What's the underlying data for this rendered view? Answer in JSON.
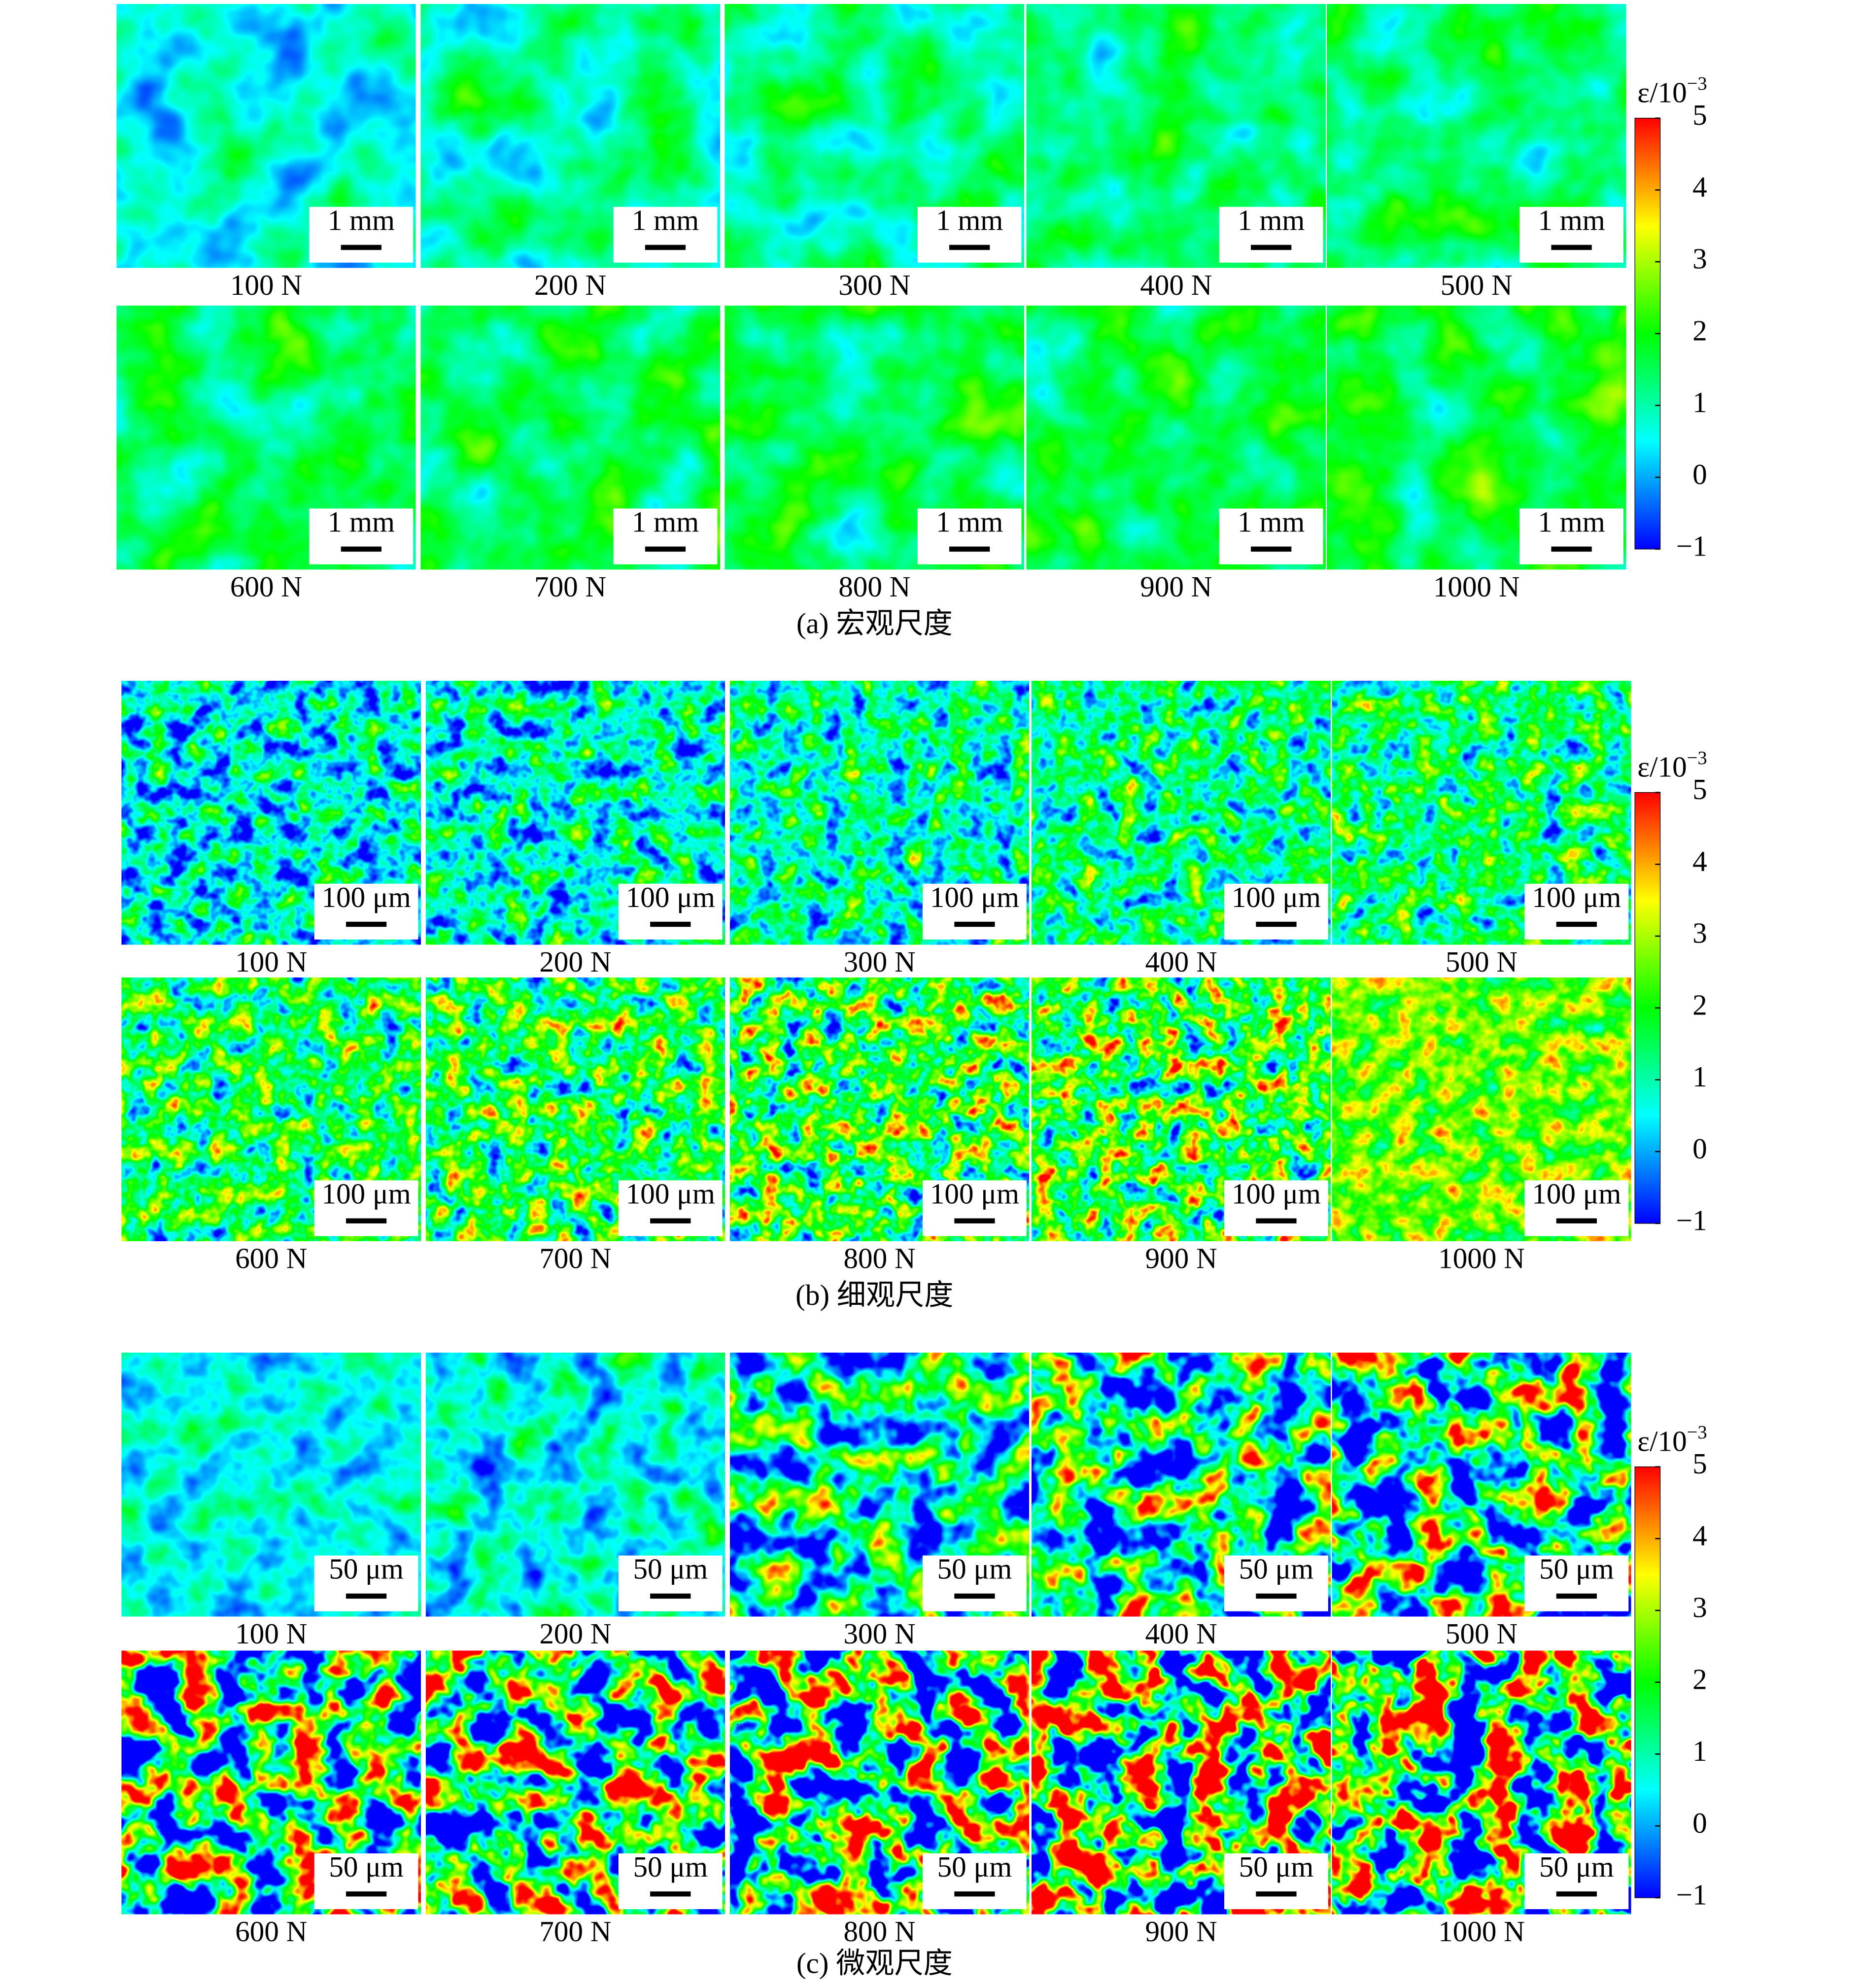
{
  "figure": {
    "colorbar": {
      "label": "ε/10",
      "exponent": "−3",
      "lim": [
        -1,
        5
      ],
      "ticks": [
        {
          "value": -1,
          "label": "−1"
        },
        0,
        1,
        2,
        3,
        4,
        5
      ]
    },
    "panels": [
      {
        "caption": "(a) 宏观尺度",
        "scale_bar": "1 mm",
        "loads": [
          "100 N",
          "200 N",
          "300 N",
          "400 N",
          "500 N",
          "600 N",
          "700 N",
          "800 N",
          "900 N",
          "1000 N"
        ]
      },
      {
        "caption": "(b) 细观尺度",
        "scale_bar": "100 μm",
        "loads": [
          "100 N",
          "200 N",
          "300 N",
          "400 N",
          "500 N",
          "600 N",
          "700 N",
          "800 N",
          "900 N",
          "1000 N"
        ]
      },
      {
        "caption": "(c) 微观尺度",
        "scale_bar": "50 μm",
        "loads": [
          "100 N",
          "200 N",
          "300 N",
          "400 N",
          "500 N",
          "600 N",
          "700 N",
          "800 N",
          "900 N",
          "1000 N"
        ]
      }
    ]
  }
}
